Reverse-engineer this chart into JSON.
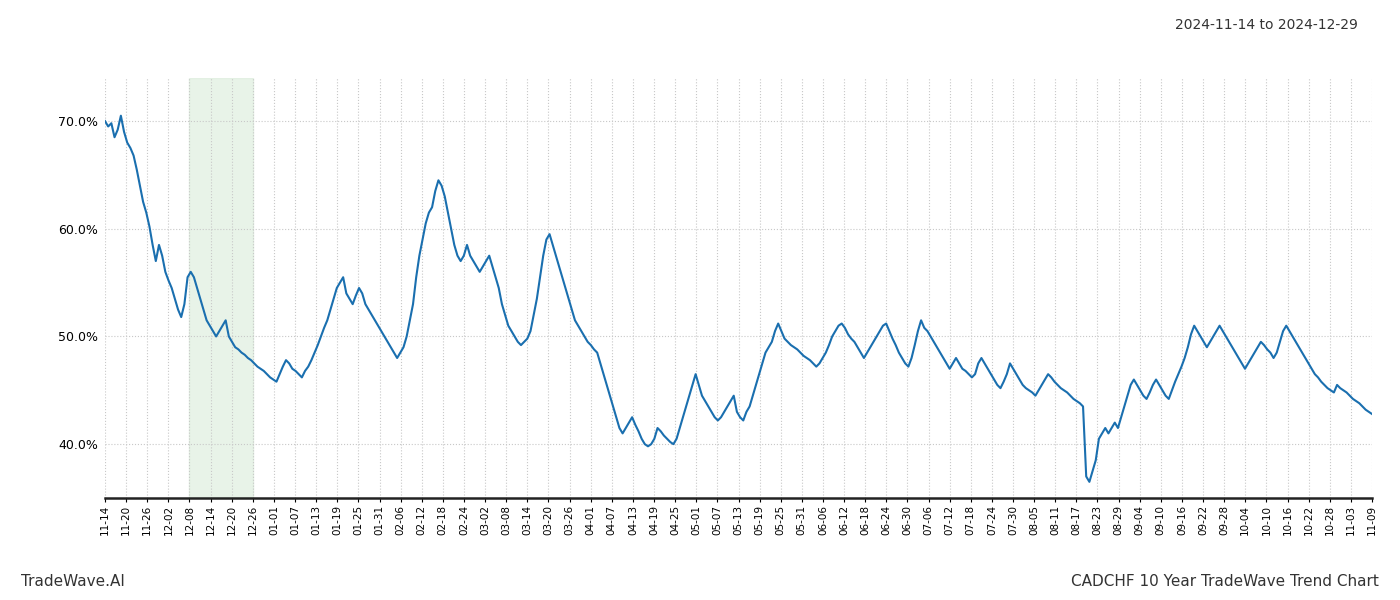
{
  "title_date_range": "2024-11-14 to 2024-12-29",
  "footer_left": "TradeWave.AI",
  "footer_right": "CADCHF 10 Year TradeWave Trend Chart",
  "line_color": "#1a6faf",
  "line_width": 1.5,
  "shade_color": "#d6ead6",
  "shade_alpha": 0.55,
  "background_color": "#ffffff",
  "grid_color": "#c8c8c8",
  "ylim": [
    35.0,
    74.0
  ],
  "yticks": [
    40.0,
    50.0,
    60.0,
    70.0
  ],
  "shade_xstart": 4,
  "shade_xend": 7,
  "x_labels": [
    "11-14",
    "11-20",
    "11-26",
    "12-02",
    "12-08",
    "12-14",
    "12-20",
    "12-26",
    "01-01",
    "01-07",
    "01-13",
    "01-19",
    "01-25",
    "01-31",
    "02-06",
    "02-12",
    "02-18",
    "02-24",
    "03-02",
    "03-08",
    "03-14",
    "03-20",
    "03-26",
    "04-01",
    "04-07",
    "04-13",
    "04-19",
    "04-25",
    "05-01",
    "05-07",
    "05-13",
    "05-19",
    "05-25",
    "05-31",
    "06-06",
    "06-12",
    "06-18",
    "06-24",
    "06-30",
    "07-06",
    "07-12",
    "07-18",
    "07-24",
    "07-30",
    "08-05",
    "08-11",
    "08-17",
    "08-23",
    "08-29",
    "09-04",
    "09-10",
    "09-16",
    "09-22",
    "09-28",
    "10-04",
    "10-10",
    "10-16",
    "10-22",
    "10-28",
    "11-03",
    "11-09"
  ],
  "y_values": [
    70.0,
    69.5,
    69.8,
    68.5,
    69.2,
    70.5,
    69.0,
    68.0,
    67.5,
    66.8,
    65.5,
    64.0,
    62.5,
    61.5,
    60.2,
    58.5,
    57.0,
    58.5,
    57.5,
    56.0,
    55.2,
    54.5,
    53.5,
    52.5,
    51.8,
    53.0,
    55.5,
    56.0,
    55.5,
    54.5,
    53.5,
    52.5,
    51.5,
    51.0,
    50.5,
    50.0,
    50.5,
    51.0,
    51.5,
    50.0,
    49.5,
    49.0,
    48.8,
    48.5,
    48.3,
    48.0,
    47.8,
    47.5,
    47.2,
    47.0,
    46.8,
    46.5,
    46.2,
    46.0,
    45.8,
    46.5,
    47.2,
    47.8,
    47.5,
    47.0,
    46.8,
    46.5,
    46.2,
    46.8,
    47.2,
    47.8,
    48.5,
    49.2,
    50.0,
    50.8,
    51.5,
    52.5,
    53.5,
    54.5,
    55.0,
    55.5,
    54.0,
    53.5,
    53.0,
    53.8,
    54.5,
    54.0,
    53.0,
    52.5,
    52.0,
    51.5,
    51.0,
    50.5,
    50.0,
    49.5,
    49.0,
    48.5,
    48.0,
    48.5,
    49.0,
    50.0,
    51.5,
    53.0,
    55.5,
    57.5,
    59.0,
    60.5,
    61.5,
    62.0,
    63.5,
    64.5,
    64.0,
    63.0,
    61.5,
    60.0,
    58.5,
    57.5,
    57.0,
    57.5,
    58.5,
    57.5,
    57.0,
    56.5,
    56.0,
    56.5,
    57.0,
    57.5,
    56.5,
    55.5,
    54.5,
    53.0,
    52.0,
    51.0,
    50.5,
    50.0,
    49.5,
    49.2,
    49.5,
    49.8,
    50.5,
    52.0,
    53.5,
    55.5,
    57.5,
    59.0,
    59.5,
    58.5,
    57.5,
    56.5,
    55.5,
    54.5,
    53.5,
    52.5,
    51.5,
    51.0,
    50.5,
    50.0,
    49.5,
    49.2,
    48.8,
    48.5,
    47.5,
    46.5,
    45.5,
    44.5,
    43.5,
    42.5,
    41.5,
    41.0,
    41.5,
    42.0,
    42.5,
    41.8,
    41.2,
    40.5,
    40.0,
    39.8,
    40.0,
    40.5,
    41.5,
    41.2,
    40.8,
    40.5,
    40.2,
    40.0,
    40.5,
    41.5,
    42.5,
    43.5,
    44.5,
    45.5,
    46.5,
    45.5,
    44.5,
    44.0,
    43.5,
    43.0,
    42.5,
    42.2,
    42.5,
    43.0,
    43.5,
    44.0,
    44.5,
    43.0,
    42.5,
    42.2,
    43.0,
    43.5,
    44.5,
    45.5,
    46.5,
    47.5,
    48.5,
    49.0,
    49.5,
    50.5,
    51.2,
    50.5,
    49.8,
    49.5,
    49.2,
    49.0,
    48.8,
    48.5,
    48.2,
    48.0,
    47.8,
    47.5,
    47.2,
    47.5,
    48.0,
    48.5,
    49.2,
    50.0,
    50.5,
    51.0,
    51.2,
    50.8,
    50.2,
    49.8,
    49.5,
    49.0,
    48.5,
    48.0,
    48.5,
    49.0,
    49.5,
    50.0,
    50.5,
    51.0,
    51.2,
    50.5,
    49.8,
    49.2,
    48.5,
    48.0,
    47.5,
    47.2,
    48.0,
    49.2,
    50.5,
    51.5,
    50.8,
    50.5,
    50.0,
    49.5,
    49.0,
    48.5,
    48.0,
    47.5,
    47.0,
    47.5,
    48.0,
    47.5,
    47.0,
    46.8,
    46.5,
    46.2,
    46.5,
    47.5,
    48.0,
    47.5,
    47.0,
    46.5,
    46.0,
    45.5,
    45.2,
    45.8,
    46.5,
    47.5,
    47.0,
    46.5,
    46.0,
    45.5,
    45.2,
    45.0,
    44.8,
    44.5,
    45.0,
    45.5,
    46.0,
    46.5,
    46.2,
    45.8,
    45.5,
    45.2,
    45.0,
    44.8,
    44.5,
    44.2,
    44.0,
    43.8,
    43.5,
    37.0,
    36.5,
    37.5,
    38.5,
    40.5,
    41.0,
    41.5,
    41.0,
    41.5,
    42.0,
    41.5,
    42.5,
    43.5,
    44.5,
    45.5,
    46.0,
    45.5,
    45.0,
    44.5,
    44.2,
    44.8,
    45.5,
    46.0,
    45.5,
    45.0,
    44.5,
    44.2,
    45.0,
    45.8,
    46.5,
    47.2,
    48.0,
    49.0,
    50.2,
    51.0,
    50.5,
    50.0,
    49.5,
    49.0,
    49.5,
    50.0,
    50.5,
    51.0,
    50.5,
    50.0,
    49.5,
    49.0,
    48.5,
    48.0,
    47.5,
    47.0,
    47.5,
    48.0,
    48.5,
    49.0,
    49.5,
    49.2,
    48.8,
    48.5,
    48.0,
    48.5,
    49.5,
    50.5,
    51.0,
    50.5,
    50.0,
    49.5,
    49.0,
    48.5,
    48.0,
    47.5,
    47.0,
    46.5,
    46.2,
    45.8,
    45.5,
    45.2,
    45.0,
    44.8,
    45.5,
    45.2,
    45.0,
    44.8,
    44.5,
    44.2,
    44.0,
    43.8,
    43.5,
    43.2,
    43.0,
    42.8
  ]
}
